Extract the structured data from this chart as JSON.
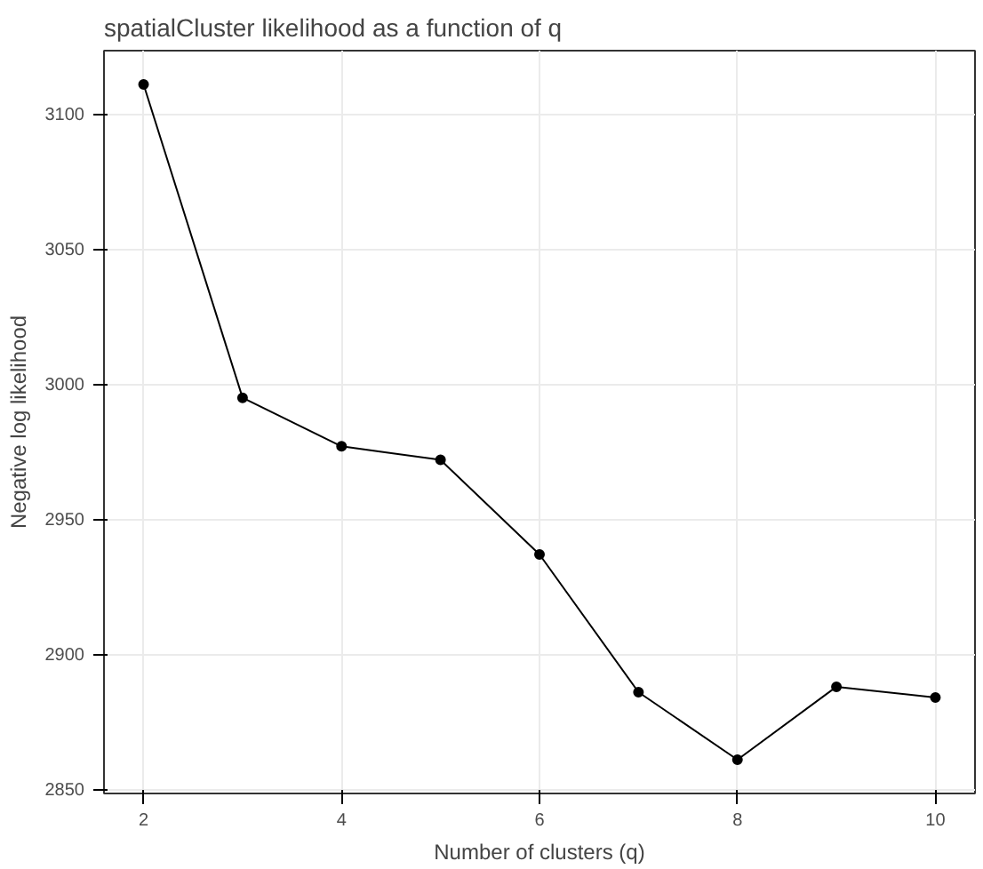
{
  "chart_data": {
    "type": "line",
    "title": "spatialCluster likelihood as a function of q",
    "xlabel": "Number of clusters (q)",
    "ylabel": "Negative log likelihood",
    "x": [
      2,
      3,
      4,
      5,
      6,
      7,
      8,
      9,
      10
    ],
    "series": [
      {
        "color": "#000000",
        "values": [
          3111,
          2995,
          2977,
          2972,
          2937,
          2886,
          2861,
          2888,
          2884
        ]
      }
    ],
    "xlim": [
      1.6,
      10.4
    ],
    "ylim": [
      2848.5,
      3123.5
    ],
    "xticks": [
      2,
      4,
      6,
      8,
      10
    ],
    "yticks": [
      2850,
      2900,
      2950,
      3000,
      3050,
      3100
    ],
    "grid": true,
    "marker": "circle",
    "line_style": "solid"
  }
}
